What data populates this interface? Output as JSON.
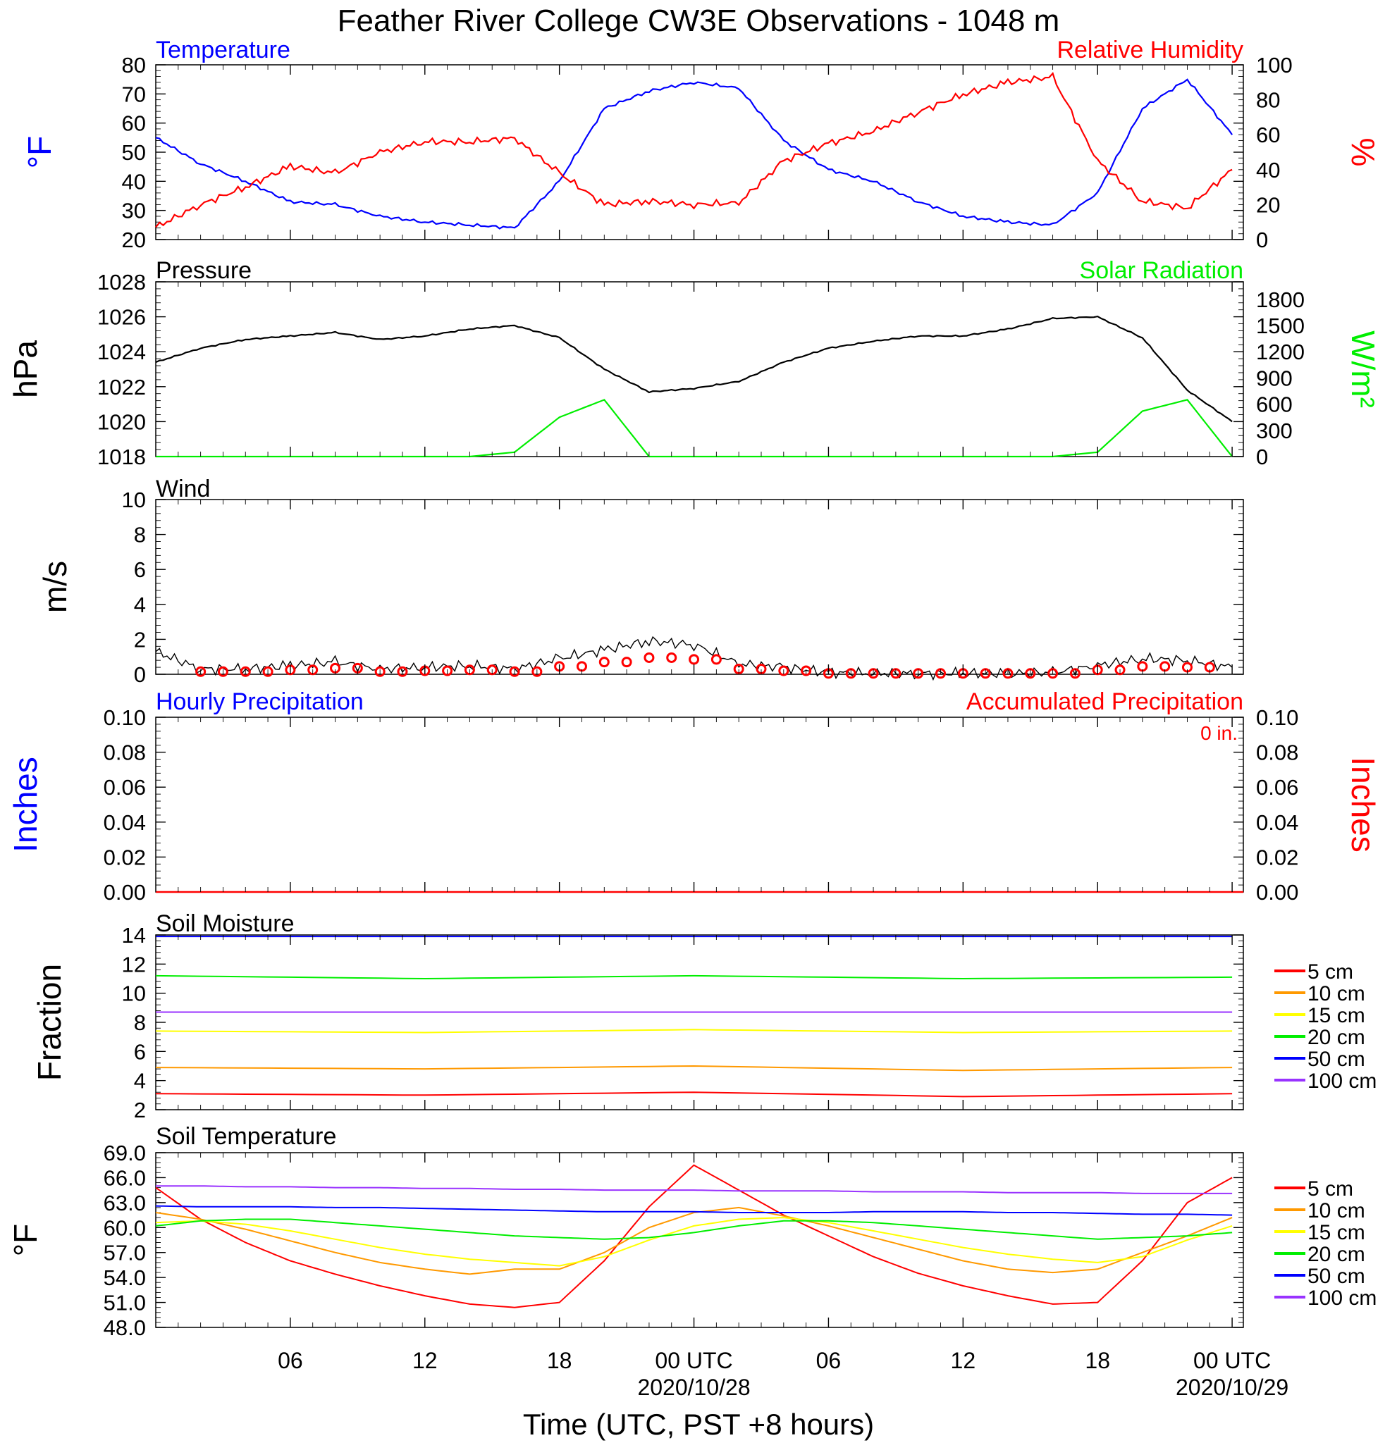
{
  "figure": {
    "title": "Feather River College CW3E Observations - 1048 m",
    "xlabel": "Time (UTC, PST +8 hours)",
    "xticks": [
      "06",
      "12",
      "18",
      "00 UTC",
      "06",
      "12",
      "18",
      "00 UTC"
    ],
    "xdates": [
      "2020/10/28",
      "2020/10/29"
    ]
  },
  "panels": {
    "temp": {
      "left_title": "Temperature",
      "right_title": "Relative Humidity",
      "left_ylabel": "°F",
      "right_ylabel": "%",
      "left_ticks": [
        "80",
        "70",
        "60",
        "50",
        "40",
        "30",
        "20"
      ],
      "right_ticks": [
        "100",
        "80",
        "60",
        "40",
        "20",
        "0"
      ]
    },
    "pressure": {
      "left_title": "Pressure",
      "right_title": "Solar Radiation",
      "left_ylabel": "hPa",
      "right_ylabel": "W/m²",
      "left_ticks": [
        "1028",
        "1026",
        "1024",
        "1022",
        "1020",
        "1018"
      ],
      "right_ticks": [
        "1800",
        "1500",
        "1200",
        "900",
        "600",
        "300",
        "0"
      ]
    },
    "wind": {
      "left_title": "Wind",
      "left_ylabel": "m/s",
      "left_ticks": [
        "10",
        "8",
        "6",
        "4",
        "2",
        "0"
      ]
    },
    "precip": {
      "left_title": "Hourly Precipitation",
      "right_title": "Accumulated Precipitation",
      "total_label": "0 in.",
      "left_ylabel": "Inches",
      "right_ylabel": "Inches",
      "left_ticks": [
        "0.10",
        "0.08",
        "0.06",
        "0.04",
        "0.02",
        "0.00"
      ],
      "right_ticks": [
        "0.10",
        "0.08",
        "0.06",
        "0.04",
        "0.02",
        "0.00"
      ]
    },
    "soil_moisture": {
      "left_title": "Soil Moisture",
      "left_ylabel": "Fraction",
      "left_ticks": [
        "14",
        "12",
        "10",
        "8",
        "6",
        "4",
        "2"
      ]
    },
    "soil_temp": {
      "left_title": "Soil Temperature",
      "left_ylabel": "°F",
      "left_ticks": [
        "69.0",
        "66.0",
        "63.0",
        "60.0",
        "57.0",
        "54.0",
        "51.0",
        "48.0"
      ]
    }
  },
  "legend": {
    "items": [
      "5 cm",
      "10 cm",
      "15 cm",
      "20 cm",
      "50 cm",
      "100 cm"
    ],
    "colors": [
      "#ff0000",
      "#ff9900",
      "#ffff00",
      "#00ee00",
      "#0000ff",
      "#9933ff"
    ]
  },
  "colors": {
    "temperature": "#0000ff",
    "humidity": "#ff0000",
    "pressure": "#000000",
    "solar": "#00ee00",
    "wind": "#000000",
    "wind_marker": "#ff0000",
    "precip_hourly": "#0000ff",
    "precip_accum": "#ff0000"
  },
  "chart_data": [
    {
      "type": "line",
      "panel": "Temperature / Relative Humidity",
      "x_hours_from_start": [
        0,
        2,
        4,
        6,
        8,
        10,
        12,
        14,
        16,
        18,
        20,
        22,
        24,
        26,
        28,
        30,
        32,
        34,
        36,
        38,
        40,
        42,
        44,
        46,
        48
      ],
      "series": [
        {
          "name": "Temperature",
          "axis": "left",
          "unit": "°F",
          "ylim": [
            20,
            80
          ],
          "values": [
            55,
            46,
            40,
            33,
            32,
            28,
            26,
            25,
            24,
            40,
            65,
            71,
            74,
            72,
            54,
            44,
            40,
            33,
            28,
            26,
            25,
            36,
            65,
            75,
            56
          ]
        },
        {
          "name": "Relative Humidity",
          "axis": "right",
          "unit": "%",
          "ylim": [
            0,
            100
          ],
          "values": [
            7,
            20,
            30,
            42,
            38,
            50,
            56,
            56,
            58,
            38,
            20,
            22,
            20,
            21,
            45,
            55,
            62,
            73,
            83,
            90,
            93,
            45,
            22,
            18,
            40
          ]
        }
      ]
    },
    {
      "type": "line",
      "panel": "Pressure / Solar Radiation",
      "x_hours_from_start": [
        0,
        2,
        4,
        6,
        8,
        10,
        12,
        14,
        16,
        18,
        20,
        22,
        24,
        26,
        28,
        30,
        32,
        34,
        36,
        38,
        40,
        42,
        44,
        46,
        48
      ],
      "series": [
        {
          "name": "Pressure",
          "axis": "left",
          "unit": "hPa",
          "ylim": [
            1018,
            1028
          ],
          "values": [
            1023.4,
            1024.2,
            1024.7,
            1024.9,
            1025.1,
            1024.7,
            1024.9,
            1025.3,
            1025.5,
            1024.8,
            1023.0,
            1021.7,
            1021.9,
            1022.3,
            1023.4,
            1024.2,
            1024.6,
            1024.9,
            1024.9,
            1025.3,
            1025.9,
            1026.0,
            1024.8,
            1021.8,
            1020.0
          ]
        },
        {
          "name": "Solar Radiation",
          "axis": "right",
          "unit": "W/m²",
          "ylim": [
            0,
            2000
          ],
          "values": [
            0,
            0,
            0,
            0,
            0,
            0,
            0,
            0,
            50,
            450,
            650,
            0,
            0,
            0,
            0,
            0,
            0,
            0,
            0,
            0,
            0,
            50,
            520,
            650,
            0
          ]
        }
      ]
    },
    {
      "type": "line",
      "panel": "Wind",
      "unit": "m/s",
      "ylim": [
        0,
        10
      ],
      "x_hours_from_start": [
        0,
        2,
        4,
        6,
        8,
        10,
        12,
        14,
        16,
        18,
        20,
        22,
        24,
        26,
        28,
        30,
        32,
        34,
        36,
        38,
        40,
        42,
        44,
        46,
        48
      ],
      "series": [
        {
          "name": "Wind",
          "values": [
            1.3,
            0.3,
            0.3,
            0.5,
            0.7,
            0.3,
            0.4,
            0.5,
            0.3,
            0.9,
            1.4,
            1.9,
            1.7,
            0.6,
            0.4,
            0.1,
            0.05,
            0.05,
            0.05,
            0.05,
            0.1,
            0.5,
            0.9,
            0.8,
            0.4
          ]
        }
      ]
    },
    {
      "type": "line",
      "panel": "Hourly / Accumulated Precipitation",
      "unit": "in",
      "ylim": [
        0,
        0.1
      ],
      "series": [
        {
          "name": "Hourly Precipitation",
          "values": [
            0
          ]
        },
        {
          "name": "Accumulated Precipitation",
          "values": [
            0
          ]
        }
      ]
    },
    {
      "type": "line",
      "panel": "Soil Moisture",
      "ylim": [
        2,
        14
      ],
      "series": [
        {
          "name": "5 cm",
          "values": [
            3.1,
            3.0,
            3.2,
            2.9,
            3.1
          ]
        },
        {
          "name": "10 cm",
          "values": [
            4.9,
            4.8,
            5.0,
            4.7,
            4.9
          ]
        },
        {
          "name": "15 cm",
          "values": [
            7.4,
            7.3,
            7.5,
            7.3,
            7.4
          ]
        },
        {
          "name": "20 cm",
          "values": [
            11.2,
            11.0,
            11.2,
            11.0,
            11.1
          ]
        },
        {
          "name": "50 cm",
          "values": [
            13.9,
            13.9,
            13.9,
            13.9,
            13.9
          ]
        },
        {
          "name": "100 cm",
          "values": [
            8.7,
            8.7,
            8.7,
            8.7,
            8.7
          ]
        }
      ]
    },
    {
      "type": "line",
      "panel": "Soil Temperature",
      "unit": "°F",
      "ylim": [
        48,
        69
      ],
      "x_hours_from_start": [
        0,
        2,
        4,
        6,
        8,
        10,
        12,
        14,
        16,
        18,
        20,
        22,
        24,
        26,
        28,
        30,
        32,
        34,
        36,
        38,
        40,
        42,
        44,
        46,
        48
      ],
      "series": [
        {
          "name": "5 cm",
          "values": [
            64.8,
            61.0,
            58.2,
            56.0,
            54.4,
            53.0,
            51.8,
            50.8,
            50.4,
            51.0,
            56.0,
            62.5,
            67.5,
            64.5,
            61.5,
            59.0,
            56.5,
            54.5,
            53.0,
            51.8,
            50.8,
            51.0,
            56.0,
            63.0,
            66.0
          ]
        },
        {
          "name": "10 cm",
          "values": [
            61.8,
            61.0,
            59.8,
            58.4,
            57.0,
            55.8,
            55.0,
            54.4,
            55.0,
            55.0,
            57.0,
            60.0,
            61.8,
            62.4,
            61.4,
            60.2,
            58.8,
            57.4,
            56.0,
            55.0,
            54.6,
            55.0,
            57.0,
            59.0,
            61.2
          ]
        },
        {
          "name": "15 cm",
          "values": [
            60.6,
            60.8,
            60.4,
            59.6,
            58.6,
            57.6,
            56.8,
            56.2,
            55.8,
            55.4,
            56.5,
            58.5,
            60.2,
            61.0,
            61.2,
            60.6,
            59.6,
            58.6,
            57.6,
            56.8,
            56.2,
            55.8,
            56.5,
            58.5,
            60.2
          ]
        },
        {
          "name": "20 cm",
          "values": [
            60.2,
            60.8,
            61.0,
            61.0,
            60.6,
            60.2,
            59.8,
            59.4,
            59.0,
            58.8,
            58.6,
            58.8,
            59.4,
            60.2,
            60.8,
            60.8,
            60.6,
            60.2,
            59.8,
            59.4,
            59.0,
            58.6,
            58.8,
            59.0,
            59.4
          ]
        },
        {
          "name": "50 cm",
          "values": [
            62.6,
            62.5,
            62.5,
            62.5,
            62.4,
            62.4,
            62.3,
            62.2,
            62.1,
            62.0,
            61.9,
            61.9,
            61.9,
            61.8,
            61.8,
            61.8,
            61.9,
            61.9,
            61.9,
            61.8,
            61.8,
            61.7,
            61.6,
            61.6,
            61.5
          ]
        },
        {
          "name": "100 cm",
          "values": [
            65.0,
            65.0,
            64.9,
            64.9,
            64.8,
            64.8,
            64.7,
            64.7,
            64.6,
            64.6,
            64.5,
            64.5,
            64.5,
            64.4,
            64.4,
            64.4,
            64.3,
            64.3,
            64.3,
            64.2,
            64.2,
            64.2,
            64.1,
            64.1,
            64.1
          ]
        }
      ]
    }
  ]
}
